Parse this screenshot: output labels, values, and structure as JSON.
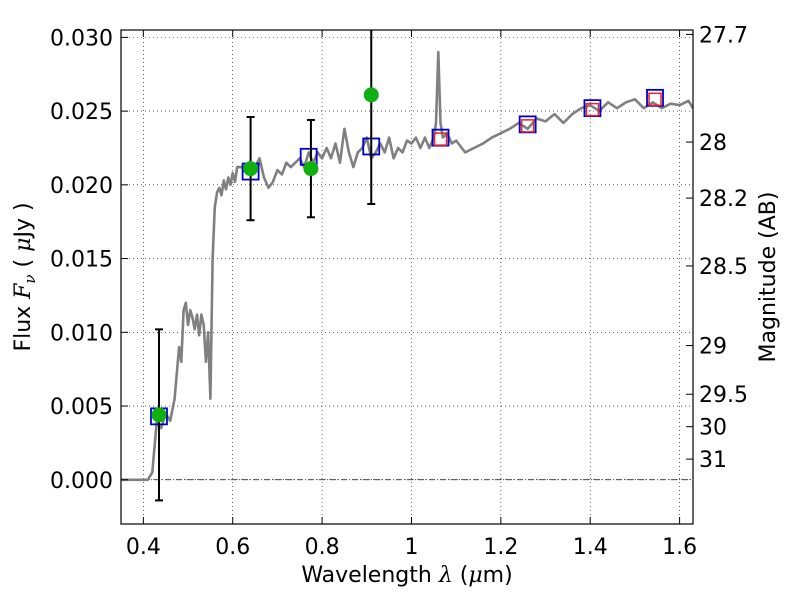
{
  "chart_data": {
    "type": "line",
    "xlabel": "Wavelength  λ (μm)",
    "ylabel": "Flux  F_ν  ( μJy )",
    "y2label": "Magnitude (AB)",
    "xlim": [
      0.35,
      1.63
    ],
    "ylim": [
      -0.003,
      0.0305
    ],
    "x_ticks": [
      0.4,
      0.6,
      0.8,
      1.0,
      1.2,
      1.4,
      1.6
    ],
    "x_tick_labels": [
      "0.4",
      "0.6",
      "0.8",
      "1",
      "1.2",
      "1.4",
      "1.6"
    ],
    "y_ticks": [
      0.0,
      0.005,
      0.01,
      0.015,
      0.02,
      0.025,
      0.03
    ],
    "y_tick_labels": [
      "0.000",
      "0.005",
      "0.010",
      "0.015",
      "0.020",
      "0.025",
      "0.030"
    ],
    "y2_ticks": [
      {
        "label": "27.7",
        "flux": 0.0302
      },
      {
        "label": "28",
        "flux": 0.0229
      },
      {
        "label": "28.2",
        "flux": 0.0191
      },
      {
        "label": "28.5",
        "flux": 0.0145
      },
      {
        "label": "29",
        "flux": 0.0091
      },
      {
        "label": "29.5",
        "flux": 0.0058
      },
      {
        "label": "30",
        "flux": 0.0036
      },
      {
        "label": "31",
        "flux": 0.0014
      }
    ],
    "grid": true,
    "zero_line": true,
    "colors": {
      "model": "#808080",
      "observed": "#0fb00f",
      "synthetic": "#0000cc",
      "predicted": "#e8242a",
      "errorbar": "#000000"
    },
    "series": [
      {
        "kind": "model_sed",
        "x": [
          0.35,
          0.41,
          0.42,
          0.43,
          0.44,
          0.45,
          0.46,
          0.47,
          0.48,
          0.485,
          0.49,
          0.495,
          0.5,
          0.505,
          0.51,
          0.515,
          0.52,
          0.525,
          0.53,
          0.535,
          0.54,
          0.545,
          0.55,
          0.555,
          0.56,
          0.565,
          0.57,
          0.575,
          0.58,
          0.585,
          0.59,
          0.595,
          0.6,
          0.605,
          0.61,
          0.62,
          0.63,
          0.64,
          0.65,
          0.66,
          0.67,
          0.68,
          0.69,
          0.7,
          0.71,
          0.72,
          0.73,
          0.74,
          0.75,
          0.76,
          0.77,
          0.78,
          0.79,
          0.8,
          0.81,
          0.82,
          0.83,
          0.84,
          0.85,
          0.86,
          0.87,
          0.88,
          0.89,
          0.9,
          0.91,
          0.92,
          0.93,
          0.94,
          0.95,
          0.96,
          0.97,
          0.98,
          0.99,
          1.0,
          1.01,
          1.02,
          1.03,
          1.04,
          1.05,
          1.055,
          1.06,
          1.065,
          1.07,
          1.08,
          1.09,
          1.1,
          1.12,
          1.14,
          1.16,
          1.18,
          1.2,
          1.22,
          1.24,
          1.26,
          1.28,
          1.3,
          1.32,
          1.34,
          1.36,
          1.38,
          1.4,
          1.42,
          1.44,
          1.46,
          1.48,
          1.5,
          1.52,
          1.54,
          1.56,
          1.58,
          1.6,
          1.62,
          1.63
        ],
        "y": [
          0.0,
          0.0,
          0.0005,
          0.004,
          0.0035,
          0.0045,
          0.004,
          0.0055,
          0.009,
          0.008,
          0.0115,
          0.012,
          0.0105,
          0.0115,
          0.011,
          0.0102,
          0.0112,
          0.0098,
          0.0112,
          0.0105,
          0.008,
          0.01,
          0.0055,
          0.015,
          0.0185,
          0.0195,
          0.0198,
          0.0193,
          0.0203,
          0.0197,
          0.0205,
          0.02,
          0.0208,
          0.0202,
          0.0212,
          0.0212,
          0.0208,
          0.0215,
          0.0212,
          0.0218,
          0.0205,
          0.0198,
          0.0202,
          0.021,
          0.0207,
          0.0215,
          0.0212,
          0.0215,
          0.0218,
          0.0212,
          0.0222,
          0.0215,
          0.0222,
          0.0218,
          0.0225,
          0.0218,
          0.0228,
          0.0215,
          0.0238,
          0.0222,
          0.0212,
          0.0222,
          0.0225,
          0.0232,
          0.0218,
          0.0222,
          0.0228,
          0.0222,
          0.0232,
          0.0218,
          0.0225,
          0.0222,
          0.023,
          0.0228,
          0.0232,
          0.0225,
          0.0232,
          0.0225,
          0.0232,
          0.0242,
          0.029,
          0.0242,
          0.0232,
          0.0235,
          0.0228,
          0.023,
          0.0222,
          0.0225,
          0.0228,
          0.0232,
          0.0235,
          0.0238,
          0.0242,
          0.0238,
          0.0245,
          0.0243,
          0.0248,
          0.0242,
          0.0248,
          0.0252,
          0.0254,
          0.025,
          0.0256,
          0.0252,
          0.0256,
          0.0258,
          0.0252,
          0.0256,
          0.0252,
          0.0255,
          0.0254,
          0.0257,
          0.0252
        ]
      },
      {
        "kind": "observed_points",
        "points": [
          {
            "x": 0.435,
            "y": 0.0044,
            "err_lo": 0.0058,
            "err_hi": 0.0058
          },
          {
            "x": 0.64,
            "y": 0.0211,
            "err_lo": 0.0035,
            "err_hi": 0.0035
          },
          {
            "x": 0.775,
            "y": 0.0211,
            "err_lo": 0.0033,
            "err_hi": 0.0033
          },
          {
            "x": 0.91,
            "y": 0.0261,
            "err_lo": 0.0074,
            "err_hi": 0.0074
          }
        ]
      },
      {
        "kind": "synthetic_boxes",
        "points": [
          {
            "x": 0.435,
            "y": 0.0043
          },
          {
            "x": 0.64,
            "y": 0.0209
          },
          {
            "x": 0.77,
            "y": 0.0219
          },
          {
            "x": 0.91,
            "y": 0.0226
          },
          {
            "x": 1.065,
            "y": 0.0232
          },
          {
            "x": 1.26,
            "y": 0.0241
          },
          {
            "x": 1.405,
            "y": 0.0252
          },
          {
            "x": 1.545,
            "y": 0.0259
          }
        ]
      },
      {
        "kind": "predicted_boxes",
        "points": [
          {
            "x": 1.065,
            "y": 0.0231
          },
          {
            "x": 1.26,
            "y": 0.024
          },
          {
            "x": 1.405,
            "y": 0.0251
          },
          {
            "x": 1.545,
            "y": 0.0258
          }
        ]
      }
    ]
  }
}
